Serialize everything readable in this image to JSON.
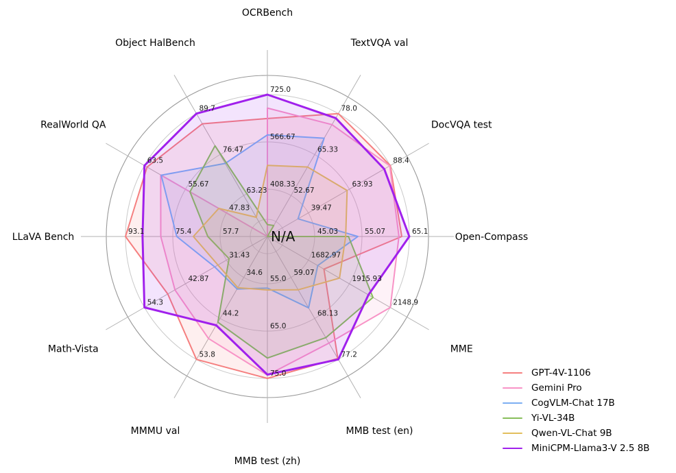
{
  "figure": {
    "background": "#ffffff",
    "center_label": "N/A"
  },
  "chart_data": {
    "type": "radar",
    "grid": true,
    "legend_position": "lower right",
    "axes": [
      {
        "label": "OCRBench",
        "min": 250,
        "max": 725,
        "ticks": [
          "408.33",
          "566.67",
          "725.0"
        ]
      },
      {
        "label": "TextVQA val",
        "min": 40,
        "max": 78,
        "ticks": [
          "52.67",
          "65.33",
          "78.0"
        ]
      },
      {
        "label": "DocVQA test",
        "min": 15,
        "max": 88.4,
        "ticks": [
          "39.47",
          "63.93",
          "88.4"
        ]
      },
      {
        "label": "Open-Compass",
        "min": 35,
        "max": 65.1,
        "ticks": [
          "45.03",
          "55.07",
          "65.1"
        ]
      },
      {
        "label": "MME",
        "min": 1450,
        "max": 2148.9,
        "ticks": [
          "1682.97",
          "1915.93",
          "2148.9"
        ]
      },
      {
        "label": "MMB test (en)",
        "min": 50,
        "max": 77.2,
        "ticks": [
          "59.07",
          "68.13",
          "77.2"
        ]
      },
      {
        "label": "MMB test (zh)",
        "min": 45,
        "max": 75,
        "ticks": [
          "55.0",
          "65.0",
          "75.0"
        ]
      },
      {
        "label": "MMMU val",
        "min": 25,
        "max": 53.8,
        "ticks": [
          "34.6",
          "44.2",
          "53.8"
        ]
      },
      {
        "label": "Math-Vista",
        "min": 20,
        "max": 54.3,
        "ticks": [
          "31.43",
          "42.87",
          "54.3"
        ]
      },
      {
        "label": "LLaVA Bench",
        "min": 40,
        "max": 93.1,
        "ticks": [
          "57.7",
          "75.4",
          "93.1"
        ]
      },
      {
        "label": "RealWorld QA",
        "min": 40,
        "max": 63.5,
        "ticks": [
          "47.83",
          "55.67",
          "63.5"
        ]
      },
      {
        "label": "Object HalBench",
        "min": 50,
        "max": 89.7,
        "ticks": [
          "63.23",
          "76.47",
          "89.7"
        ]
      }
    ],
    "center_tick_label": "N/A",
    "series": [
      {
        "name": "GPT-4V-1106",
        "color": "#F57F7F",
        "line_width": 2,
        "values": [
          645,
          78.0,
          88.4,
          63.5,
          1771.5,
          77.0,
          75.0,
          53.8,
          47.8,
          93.1,
          63.0,
          86.4
        ]
      },
      {
        "name": "Gemini Pro",
        "color": "#F893C6",
        "line_width": 2,
        "values": [
          680,
          74.6,
          88.1,
          62.9,
          2148.9,
          73.6,
          74.3,
          48.9,
          45.8,
          79.9,
          60.4,
          null
        ]
      },
      {
        "name": "CogVLM-Chat 17B",
        "color": "#7CAEF2",
        "line_width": 2,
        "values": [
          590,
          70.4,
          33.3,
          54.2,
          1736.6,
          65.8,
          55.9,
          37.3,
          34.7,
          73.9,
          60.3,
          73.6
        ]
      },
      {
        "name": "Yi-VL-34B",
        "color": "#87BE5A",
        "line_width": 2,
        "values": [
          290,
          43.4,
          null,
          52.2,
          2050.2,
          72.4,
          70.7,
          45.1,
          30.7,
          62.3,
          54.8,
          79.3
        ]
      },
      {
        "name": "Qwen-VL-Chat 9B",
        "color": "#E2BE5C",
        "line_width": 2,
        "values": [
          488,
          61.5,
          62.6,
          51.6,
          1860.0,
          61.8,
          56.3,
          37.0,
          33.8,
          67.7,
          49.3,
          56.2
        ]
      },
      {
        "name": "MiniCPM-Llama3-V 2.5 8B",
        "color": "#A020EC",
        "line_width": 3,
        "values": [
          725,
          76.6,
          84.8,
          65.1,
          2024.6,
          77.2,
          74.2,
          45.8,
          54.3,
          86.7,
          63.5,
          89.7
        ]
      }
    ],
    "colors": {
      "grid": "#c9c9c9",
      "spoke": "#b2b2b2",
      "outer_ring": "#999999",
      "tick_text": "#1a1a1a",
      "axis_label_text": "#000000",
      "background": "#ffffff"
    }
  }
}
